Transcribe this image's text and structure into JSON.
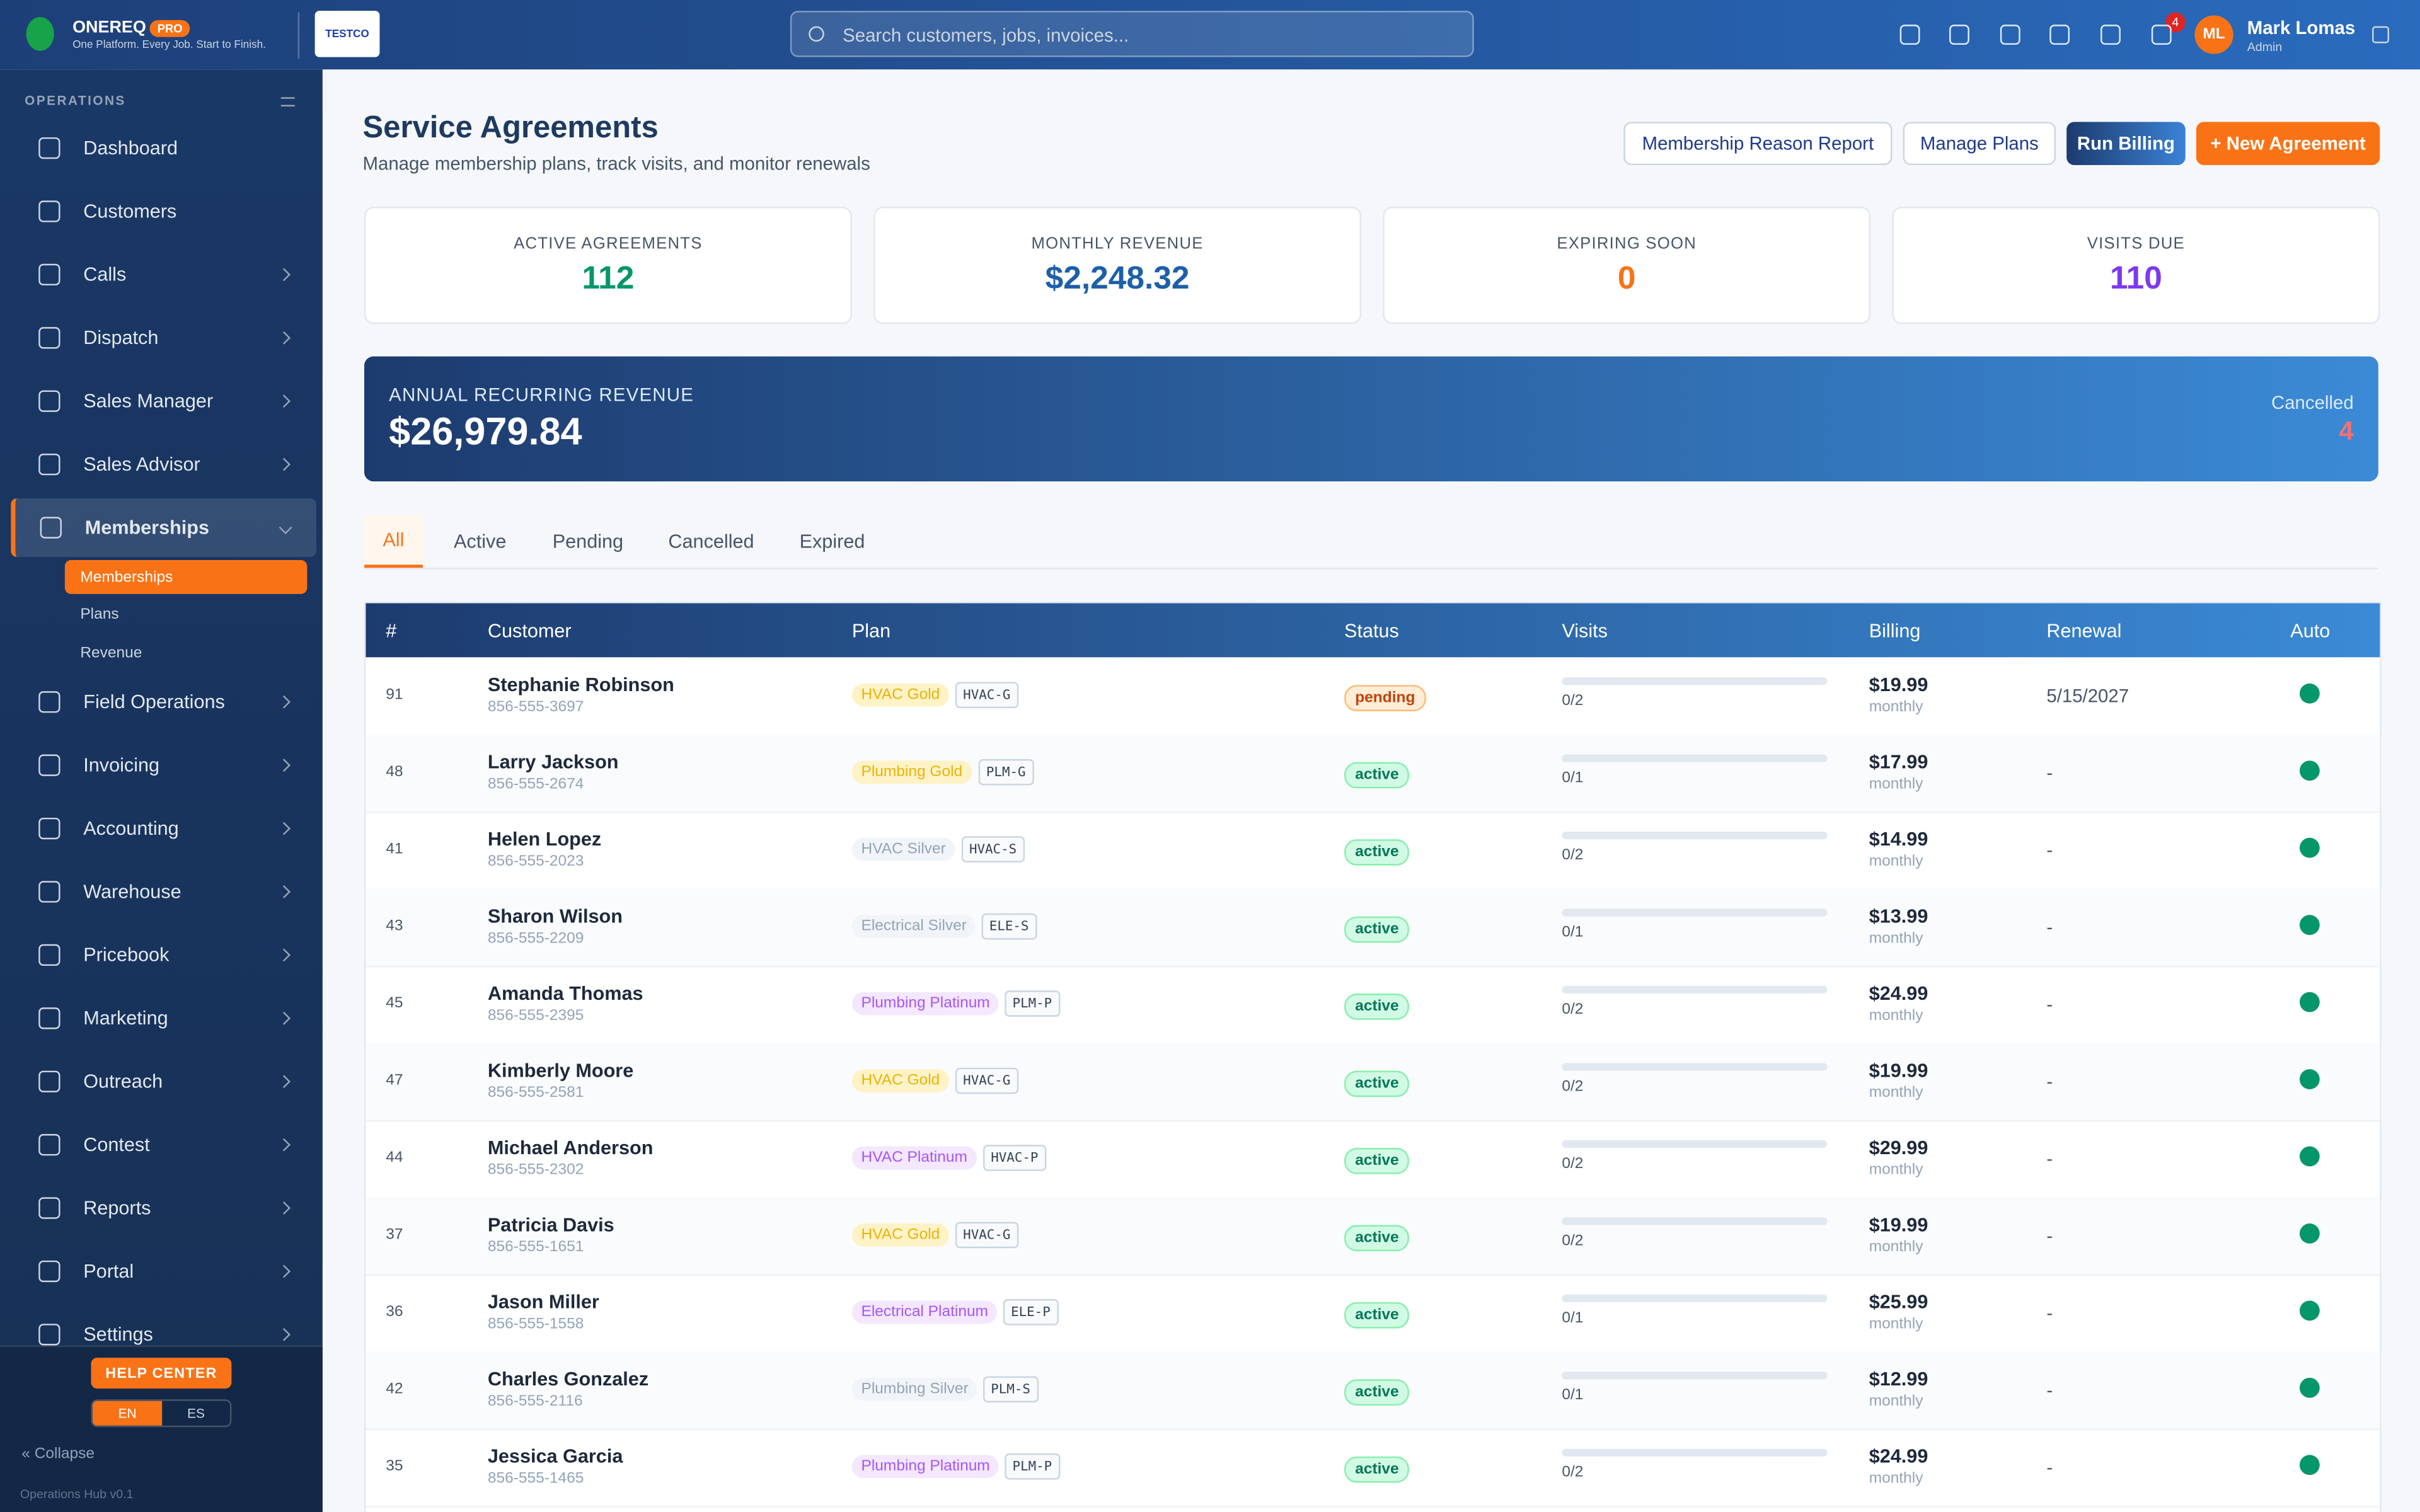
{
  "header": {
    "brand": "ONEREQ",
    "badge": "PRO",
    "tagline": "One Platform. Every Job. Start to Finish.",
    "company_logo": "TESTCO",
    "search_placeholder": "Search customers, jobs, invoices...",
    "notification_count": "4",
    "user": {
      "initials": "ML",
      "name": "Mark Lomas",
      "role": "Admin"
    }
  },
  "sidebar": {
    "section": "OPERATIONS",
    "active": "Memberships",
    "items": [
      {
        "label": "Dashboard",
        "expandable": false
      },
      {
        "label": "Customers",
        "expandable": false
      },
      {
        "label": "Calls",
        "expandable": true
      },
      {
        "label": "Dispatch",
        "expandable": true
      },
      {
        "label": "Sales Manager",
        "expandable": true
      },
      {
        "label": "Sales Advisor",
        "expandable": true
      },
      {
        "label": "Memberships",
        "expandable": true,
        "submenu": [
          "Memberships",
          "Plans",
          "Revenue"
        ]
      },
      {
        "label": "Field Operations",
        "expandable": true
      },
      {
        "label": "Invoicing",
        "expandable": true
      },
      {
        "label": "Accounting",
        "expandable": true
      },
      {
        "label": "Warehouse",
        "expandable": true
      },
      {
        "label": "Pricebook",
        "expandable": true
      },
      {
        "label": "Marketing",
        "expandable": true
      },
      {
        "label": "Outreach",
        "expandable": true
      },
      {
        "label": "Contest",
        "expandable": true
      },
      {
        "label": "Reports",
        "expandable": true
      },
      {
        "label": "Portal",
        "expandable": true
      },
      {
        "label": "Settings",
        "expandable": true
      }
    ],
    "help": "HELP CENTER",
    "languages": [
      "EN",
      "ES"
    ],
    "collapse": "Collapse",
    "version": "Operations Hub v0.1"
  },
  "page": {
    "title": "Service Agreements",
    "subtitle": "Manage membership plans, track visits, and monitor renewals",
    "buttons": [
      "Membership Reason Report",
      "Manage Plans",
      "Run Billing",
      "+ New Agreement"
    ]
  },
  "stats": [
    {
      "label": "ACTIVE AGREEMENTS",
      "value": "112",
      "color": "#059669"
    },
    {
      "label": "MONTHLY REVENUE",
      "value": "$2,248.32",
      "color": "#1e5fa8"
    },
    {
      "label": "EXPIRING SOON",
      "value": "0",
      "color": "#f97316"
    },
    {
      "label": "VISITS DUE",
      "value": "110",
      "color": "#7c3aed"
    }
  ],
  "arr": {
    "label": "ANNUAL RECURRING REVENUE",
    "value": "$26,979.84",
    "cancelled_label": "Cancelled",
    "cancelled_value": "4"
  },
  "tabs": {
    "items": [
      "All",
      "Active",
      "Pending",
      "Cancelled",
      "Expired"
    ],
    "active": "All"
  },
  "table": {
    "columns": [
      "#",
      "Customer",
      "Plan",
      "Status",
      "Visits",
      "Billing",
      "Renewal",
      "Auto"
    ],
    "rows": [
      {
        "id": 91,
        "name": "Stephanie Robinson",
        "phone": "856-555-3697",
        "plan": "HVAC Gold",
        "plan_code": "HVAC-G",
        "status": "pending",
        "visits": "0/2",
        "price": "$19.99",
        "period": "monthly",
        "renewal": "5/15/2027"
      },
      {
        "id": 48,
        "name": "Larry Jackson",
        "phone": "856-555-2674",
        "plan": "Plumbing Gold",
        "plan_code": "PLM-G",
        "status": "active",
        "visits": "0/1",
        "price": "$17.99",
        "period": "monthly",
        "renewal": "-"
      },
      {
        "id": 41,
        "name": "Helen Lopez",
        "phone": "856-555-2023",
        "plan": "HVAC Silver",
        "plan_code": "HVAC-S",
        "status": "active",
        "visits": "0/2",
        "price": "$14.99",
        "period": "monthly",
        "renewal": "-"
      },
      {
        "id": 43,
        "name": "Sharon Wilson",
        "phone": "856-555-2209",
        "plan": "Electrical Silver",
        "plan_code": "ELE-S",
        "status": "active",
        "visits": "0/1",
        "price": "$13.99",
        "period": "monthly",
        "renewal": "-"
      },
      {
        "id": 45,
        "name": "Amanda Thomas",
        "phone": "856-555-2395",
        "plan": "Plumbing Platinum",
        "plan_code": "PLM-P",
        "status": "active",
        "visits": "0/2",
        "price": "$24.99",
        "period": "monthly",
        "renewal": "-"
      },
      {
        "id": 47,
        "name": "Kimberly Moore",
        "phone": "856-555-2581",
        "plan": "HVAC Gold",
        "plan_code": "HVAC-G",
        "status": "active",
        "visits": "0/2",
        "price": "$19.99",
        "period": "monthly",
        "renewal": "-"
      },
      {
        "id": 44,
        "name": "Michael Anderson",
        "phone": "856-555-2302",
        "plan": "HVAC Platinum",
        "plan_code": "HVAC-P",
        "status": "active",
        "visits": "0/2",
        "price": "$29.99",
        "period": "monthly",
        "renewal": "-"
      },
      {
        "id": 37,
        "name": "Patricia Davis",
        "phone": "856-555-1651",
        "plan": "HVAC Gold",
        "plan_code": "HVAC-G",
        "status": "active",
        "visits": "0/2",
        "price": "$19.99",
        "period": "monthly",
        "renewal": "-"
      },
      {
        "id": 36,
        "name": "Jason Miller",
        "phone": "856-555-1558",
        "plan": "Electrical Platinum",
        "plan_code": "ELE-P",
        "status": "active",
        "visits": "0/1",
        "price": "$25.99",
        "period": "monthly",
        "renewal": "-"
      },
      {
        "id": 42,
        "name": "Charles Gonzalez",
        "phone": "856-555-2116",
        "plan": "Plumbing Silver",
        "plan_code": "PLM-S",
        "status": "active",
        "visits": "0/1",
        "price": "$12.99",
        "period": "monthly",
        "renewal": "-"
      },
      {
        "id": 35,
        "name": "Jessica Garcia",
        "phone": "856-555-1465",
        "plan": "Plumbing Platinum",
        "plan_code": "PLM-P",
        "status": "active",
        "visits": "0/2",
        "price": "$24.99",
        "period": "monthly",
        "renewal": "-"
      }
    ]
  }
}
